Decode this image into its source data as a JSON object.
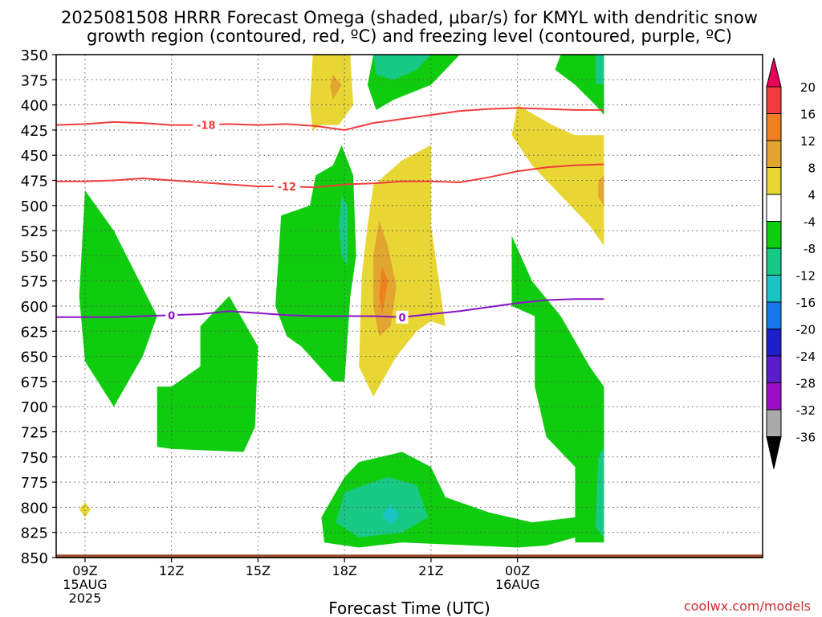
{
  "title_lines": [
    "2025081508 HRRR Forecast Omega (shaded, μbar/s) for KMYL with dendritic snow",
    "growth region (contoured, red, ºC) and freezing level (contoured, purple, ºC)"
  ],
  "credit": "coolwx.com/models",
  "chart_data": {
    "type": "area",
    "title": "2025081508 HRRR Forecast Omega (shaded, μbar/s) for KMYL with dendritic snow growth region (contoured, red, ºC) and freezing level (contoured, purple, ºC)",
    "xlabel": "Forecast Time (UTC)",
    "ylabel": "",
    "x_unit": "hours since 2025-08-15 08Z",
    "xlim": [
      8,
      32.5
    ],
    "ylim": [
      850,
      350
    ],
    "y_reversed": true,
    "grid": true,
    "x_ticks": [
      {
        "x": 9,
        "lines": [
          "09Z",
          "15AUG",
          "2025"
        ]
      },
      {
        "x": 12,
        "lines": [
          "12Z"
        ]
      },
      {
        "x": 15,
        "lines": [
          "15Z"
        ]
      },
      {
        "x": 18,
        "lines": [
          "18Z"
        ]
      },
      {
        "x": 21,
        "lines": [
          "21Z"
        ]
      },
      {
        "x": 24,
        "lines": [
          "00Z",
          "16AUG"
        ]
      }
    ],
    "y_ticks": [
      350,
      375,
      400,
      425,
      450,
      475,
      500,
      525,
      550,
      575,
      600,
      625,
      650,
      675,
      700,
      725,
      750,
      775,
      800,
      825,
      850
    ],
    "colorbar": {
      "unit": "μbar/s",
      "labels": [
        "20",
        "16",
        "12",
        "8",
        "4",
        "-4",
        "-8",
        "-12",
        "-16",
        "-20",
        "-24",
        "-28",
        "-32",
        "-36"
      ],
      "colors": [
        "#e8005a",
        "#f03c3c",
        "#ef7f20",
        "#e3a531",
        "#e8d634",
        "#ffffff",
        "#0fcc0f",
        "#18c985",
        "#1ac4c4",
        "#1478e8",
        "#1f1fc8",
        "#5a1ec8",
        "#9b0ec8",
        "#aaaaaa",
        "#000000"
      ]
    },
    "shaded_regions": [
      {
        "name": "lift-left",
        "color": "#0fcc0f",
        "points": [
          [
            9.0,
            485
          ],
          [
            10.0,
            525
          ],
          [
            11.5,
            610
          ],
          [
            11.0,
            650
          ],
          [
            10.0,
            700
          ],
          [
            9.0,
            655
          ],
          [
            8.8,
            590
          ]
        ]
      },
      {
        "name": "lift-mid-a",
        "color": "#0fcc0f",
        "points": [
          [
            12.0,
            680
          ],
          [
            13.0,
            660
          ],
          [
            13.0,
            620
          ],
          [
            14.0,
            590
          ],
          [
            15.0,
            640
          ],
          [
            14.9,
            720
          ],
          [
            14.5,
            745
          ],
          [
            12.0,
            742
          ],
          [
            11.5,
            740
          ],
          [
            11.5,
            680
          ]
        ]
      },
      {
        "name": "lift-mid-b",
        "color": "#0fcc0f",
        "points": [
          [
            15.8,
            510
          ],
          [
            16.8,
            500
          ],
          [
            17.0,
            470
          ],
          [
            17.6,
            460
          ],
          [
            17.9,
            440
          ],
          [
            18.3,
            470
          ],
          [
            18.4,
            550
          ],
          [
            18.2,
            590
          ],
          [
            18.0,
            675
          ],
          [
            17.6,
            675
          ],
          [
            16.5,
            640
          ],
          [
            16.0,
            630
          ],
          [
            15.6,
            600
          ]
        ]
      },
      {
        "name": "lift-mid-b-core",
        "color": "#18c985",
        "points": [
          [
            17.9,
            490
          ],
          [
            18.1,
            500
          ],
          [
            18.1,
            560
          ],
          [
            17.9,
            550
          ],
          [
            17.8,
            520
          ]
        ]
      },
      {
        "name": "lift-low",
        "color": "#0fcc0f",
        "points": [
          [
            18.0,
            770
          ],
          [
            18.5,
            755
          ],
          [
            20.0,
            745
          ],
          [
            21.0,
            760
          ],
          [
            21.5,
            790
          ],
          [
            23.0,
            805
          ],
          [
            24.5,
            815
          ],
          [
            26.0,
            810
          ],
          [
            26.0,
            830
          ],
          [
            25.0,
            838
          ],
          [
            24.0,
            840
          ],
          [
            20.0,
            835
          ],
          [
            18.5,
            840
          ],
          [
            17.3,
            835
          ],
          [
            17.2,
            810
          ]
        ]
      },
      {
        "name": "lift-low-core",
        "color": "#18c985",
        "points": [
          [
            18.0,
            785
          ],
          [
            19.5,
            770
          ],
          [
            20.5,
            778
          ],
          [
            20.9,
            810
          ],
          [
            20.0,
            825
          ],
          [
            18.5,
            830
          ],
          [
            17.7,
            815
          ]
        ]
      },
      {
        "name": "lift-low-peak",
        "color": "#1ac4c4",
        "points": [
          [
            19.6,
            797
          ],
          [
            19.9,
            808
          ],
          [
            19.6,
            818
          ],
          [
            19.3,
            808
          ]
        ]
      },
      {
        "name": "lift-top",
        "color": "#0fcc0f",
        "points": [
          [
            19.0,
            350
          ],
          [
            20.5,
            350
          ],
          [
            22.0,
            350
          ],
          [
            21.0,
            380
          ],
          [
            19.7,
            395
          ],
          [
            19.1,
            405
          ],
          [
            18.8,
            380
          ]
        ]
      },
      {
        "name": "lift-top-core",
        "color": "#18c985",
        "points": [
          [
            19.0,
            350
          ],
          [
            21.0,
            350
          ],
          [
            20.5,
            365
          ],
          [
            19.7,
            375
          ],
          [
            19.1,
            370
          ]
        ]
      },
      {
        "name": "lift-right-top",
        "color": "#0fcc0f",
        "points": [
          [
            25.5,
            350
          ],
          [
            27.0,
            350
          ],
          [
            27.0,
            410
          ],
          [
            26.7,
            400
          ],
          [
            26.0,
            380
          ],
          [
            25.3,
            365
          ]
        ]
      },
      {
        "name": "lift-right-top-core",
        "color": "#18c985",
        "points": [
          [
            26.7,
            350
          ],
          [
            27.0,
            350
          ],
          [
            27.0,
            380
          ],
          [
            26.7,
            378
          ]
        ]
      },
      {
        "name": "lift-right-low",
        "color": "#0fcc0f",
        "points": [
          [
            23.8,
            530
          ],
          [
            24.5,
            575
          ],
          [
            25.5,
            610
          ],
          [
            26.5,
            660
          ],
          [
            27.0,
            680
          ],
          [
            27.0,
            835
          ],
          [
            26.0,
            835
          ],
          [
            26.0,
            760
          ],
          [
            25.0,
            730
          ],
          [
            24.6,
            680
          ],
          [
            24.6,
            610
          ],
          [
            23.8,
            600
          ],
          [
            23.8,
            570
          ]
        ]
      },
      {
        "name": "lift-right-low-core",
        "color": "#18c985",
        "points": [
          [
            26.8,
            750
          ],
          [
            27.0,
            740
          ],
          [
            27.0,
            830
          ],
          [
            26.7,
            820
          ]
        ]
      },
      {
        "name": "sink-top",
        "color": "#e8d634",
        "points": [
          [
            16.9,
            350
          ],
          [
            18.2,
            350
          ],
          [
            18.3,
            400
          ],
          [
            17.8,
            420
          ],
          [
            17.2,
            420
          ],
          [
            16.9,
            425
          ],
          [
            16.8,
            400
          ]
        ]
      },
      {
        "name": "sink-top-core",
        "color": "#e3a531",
        "points": [
          [
            17.6,
            370
          ],
          [
            17.9,
            380
          ],
          [
            17.6,
            395
          ],
          [
            17.5,
            382
          ]
        ]
      },
      {
        "name": "sink-mid",
        "color": "#e8d634",
        "points": [
          [
            19.0,
            480
          ],
          [
            20.0,
            455
          ],
          [
            21.0,
            440
          ],
          [
            21.0,
            520
          ],
          [
            21.5,
            620
          ],
          [
            21.0,
            615
          ],
          [
            20.5,
            625
          ],
          [
            19.8,
            650
          ],
          [
            19.0,
            690
          ],
          [
            18.5,
            660
          ],
          [
            18.6,
            570
          ],
          [
            18.8,
            520
          ]
        ]
      },
      {
        "name": "sink-mid-core",
        "color": "#e3a531",
        "points": [
          [
            19.2,
            515
          ],
          [
            19.5,
            540
          ],
          [
            19.8,
            580
          ],
          [
            19.6,
            620
          ],
          [
            19.2,
            630
          ],
          [
            19.0,
            600
          ],
          [
            19.0,
            550
          ]
        ]
      },
      {
        "name": "sink-mid-peak",
        "color": "#ef7f20",
        "points": [
          [
            19.3,
            560
          ],
          [
            19.5,
            575
          ],
          [
            19.3,
            608
          ],
          [
            19.2,
            590
          ]
        ]
      },
      {
        "name": "sink-right",
        "color": "#e8d634",
        "points": [
          [
            24.0,
            400
          ],
          [
            25.2,
            420
          ],
          [
            26.0,
            430
          ],
          [
            27.0,
            430
          ],
          [
            27.0,
            540
          ],
          [
            26.5,
            520
          ],
          [
            25.5,
            490
          ],
          [
            24.5,
            460
          ],
          [
            23.8,
            430
          ]
        ]
      },
      {
        "name": "sink-right-core",
        "color": "#e3a531",
        "points": [
          [
            26.8,
            475
          ],
          [
            27.0,
            470
          ],
          [
            27.0,
            500
          ],
          [
            26.8,
            492
          ]
        ]
      },
      {
        "name": "sink-dot",
        "color": "#e8d634",
        "points": [
          [
            9.0,
            795
          ],
          [
            9.2,
            802
          ],
          [
            9.0,
            810
          ],
          [
            8.8,
            802
          ]
        ]
      }
    ],
    "contours": [
      {
        "name": "-18",
        "color": "#f03c3c",
        "label": "-18",
        "label_x": 13.2,
        "points": [
          [
            8,
            420
          ],
          [
            9,
            419
          ],
          [
            10,
            417
          ],
          [
            11,
            418
          ],
          [
            12,
            420
          ],
          [
            13,
            420
          ],
          [
            14,
            419
          ],
          [
            15,
            420
          ],
          [
            16,
            419
          ],
          [
            17,
            421
          ],
          [
            18,
            425
          ],
          [
            19,
            418
          ],
          [
            20,
            414
          ],
          [
            21,
            410
          ],
          [
            22,
            406
          ],
          [
            23,
            404
          ],
          [
            24,
            403
          ],
          [
            25,
            404
          ],
          [
            26,
            405
          ],
          [
            27,
            405
          ]
        ]
      },
      {
        "name": "-12",
        "color": "#f03c3c",
        "label": "-12",
        "label_x": 16.0,
        "points": [
          [
            8,
            476
          ],
          [
            9,
            476
          ],
          [
            10,
            475
          ],
          [
            11,
            473
          ],
          [
            12,
            475
          ],
          [
            13,
            477
          ],
          [
            14,
            479
          ],
          [
            15,
            481
          ],
          [
            16,
            481
          ],
          [
            17,
            482
          ],
          [
            18,
            479
          ],
          [
            19,
            478
          ],
          [
            20,
            476
          ],
          [
            21,
            476
          ],
          [
            22,
            477
          ],
          [
            23,
            472
          ],
          [
            24,
            466
          ],
          [
            25,
            462
          ],
          [
            26,
            460
          ],
          [
            27,
            459
          ]
        ]
      },
      {
        "name": "0",
        "color": "#8a14c8",
        "label": "0",
        "label_x": 12.0,
        "label2_x": 20.0,
        "points": [
          [
            8,
            611
          ],
          [
            9,
            611
          ],
          [
            10,
            611
          ],
          [
            11,
            610
          ],
          [
            12,
            609
          ],
          [
            13,
            608
          ],
          [
            14,
            605
          ],
          [
            15,
            607
          ],
          [
            16,
            609
          ],
          [
            17,
            610
          ],
          [
            18,
            610
          ],
          [
            19,
            610
          ],
          [
            20,
            611
          ],
          [
            21,
            608
          ],
          [
            22,
            605
          ],
          [
            23,
            601
          ],
          [
            24,
            597
          ],
          [
            25,
            594
          ],
          [
            26,
            593
          ],
          [
            27,
            593
          ]
        ]
      }
    ],
    "ground": {
      "color": "#a0522d",
      "from": 847,
      "to": 850
    }
  }
}
